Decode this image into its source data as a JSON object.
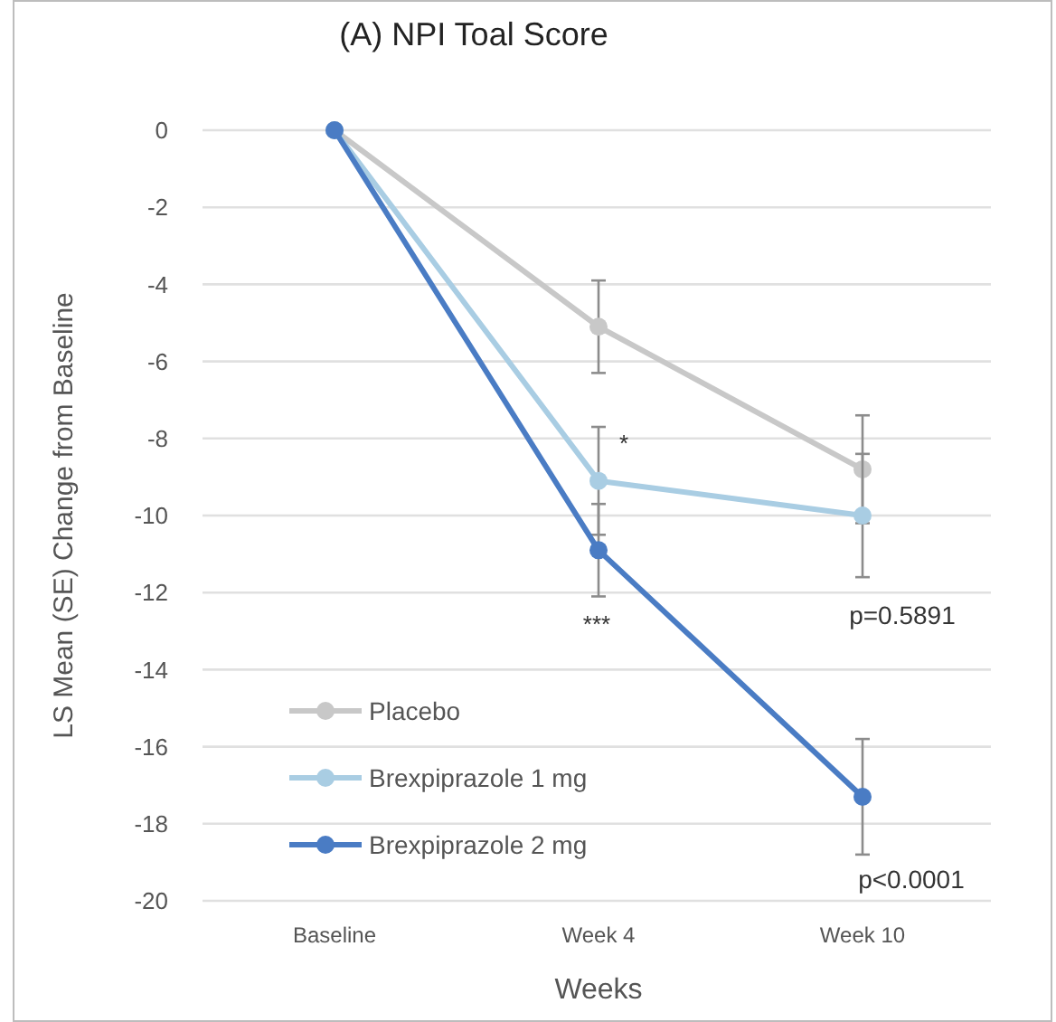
{
  "chart_data": {
    "type": "line",
    "title": "(A) NPI Toal Score",
    "xlabel": "Weeks",
    "ylabel": "LS Mean (SE) Change from Baseline",
    "categories": [
      "Baseline",
      "Week 4",
      "Week 10"
    ],
    "series": [
      {
        "name": "Placebo",
        "color": "#c8c8c8",
        "values": [
          0,
          -5.1,
          -8.8
        ],
        "errors": [
          null,
          1.2,
          1.4
        ]
      },
      {
        "name": "Brexpiprazole 1 mg",
        "color": "#a9cde3",
        "values": [
          0,
          -9.1,
          -10.0
        ],
        "errors": [
          null,
          1.4,
          1.6
        ]
      },
      {
        "name": "Brexpiprazole 2 mg",
        "color": "#4a7cc4",
        "values": [
          0,
          -10.9,
          -17.3
        ],
        "errors": [
          null,
          1.2,
          1.5
        ]
      }
    ],
    "ylim": [
      -20,
      0
    ],
    "yticks": [
      0,
      -2,
      -4,
      -6,
      -8,
      -10,
      -12,
      -14,
      -16,
      -18,
      -20
    ],
    "grid": "y",
    "legend": "bottom left",
    "marker": "circle",
    "line_style": "solid",
    "annotations": [
      "*",
      "***",
      "p=0.5891",
      "p<0.0001"
    ]
  }
}
